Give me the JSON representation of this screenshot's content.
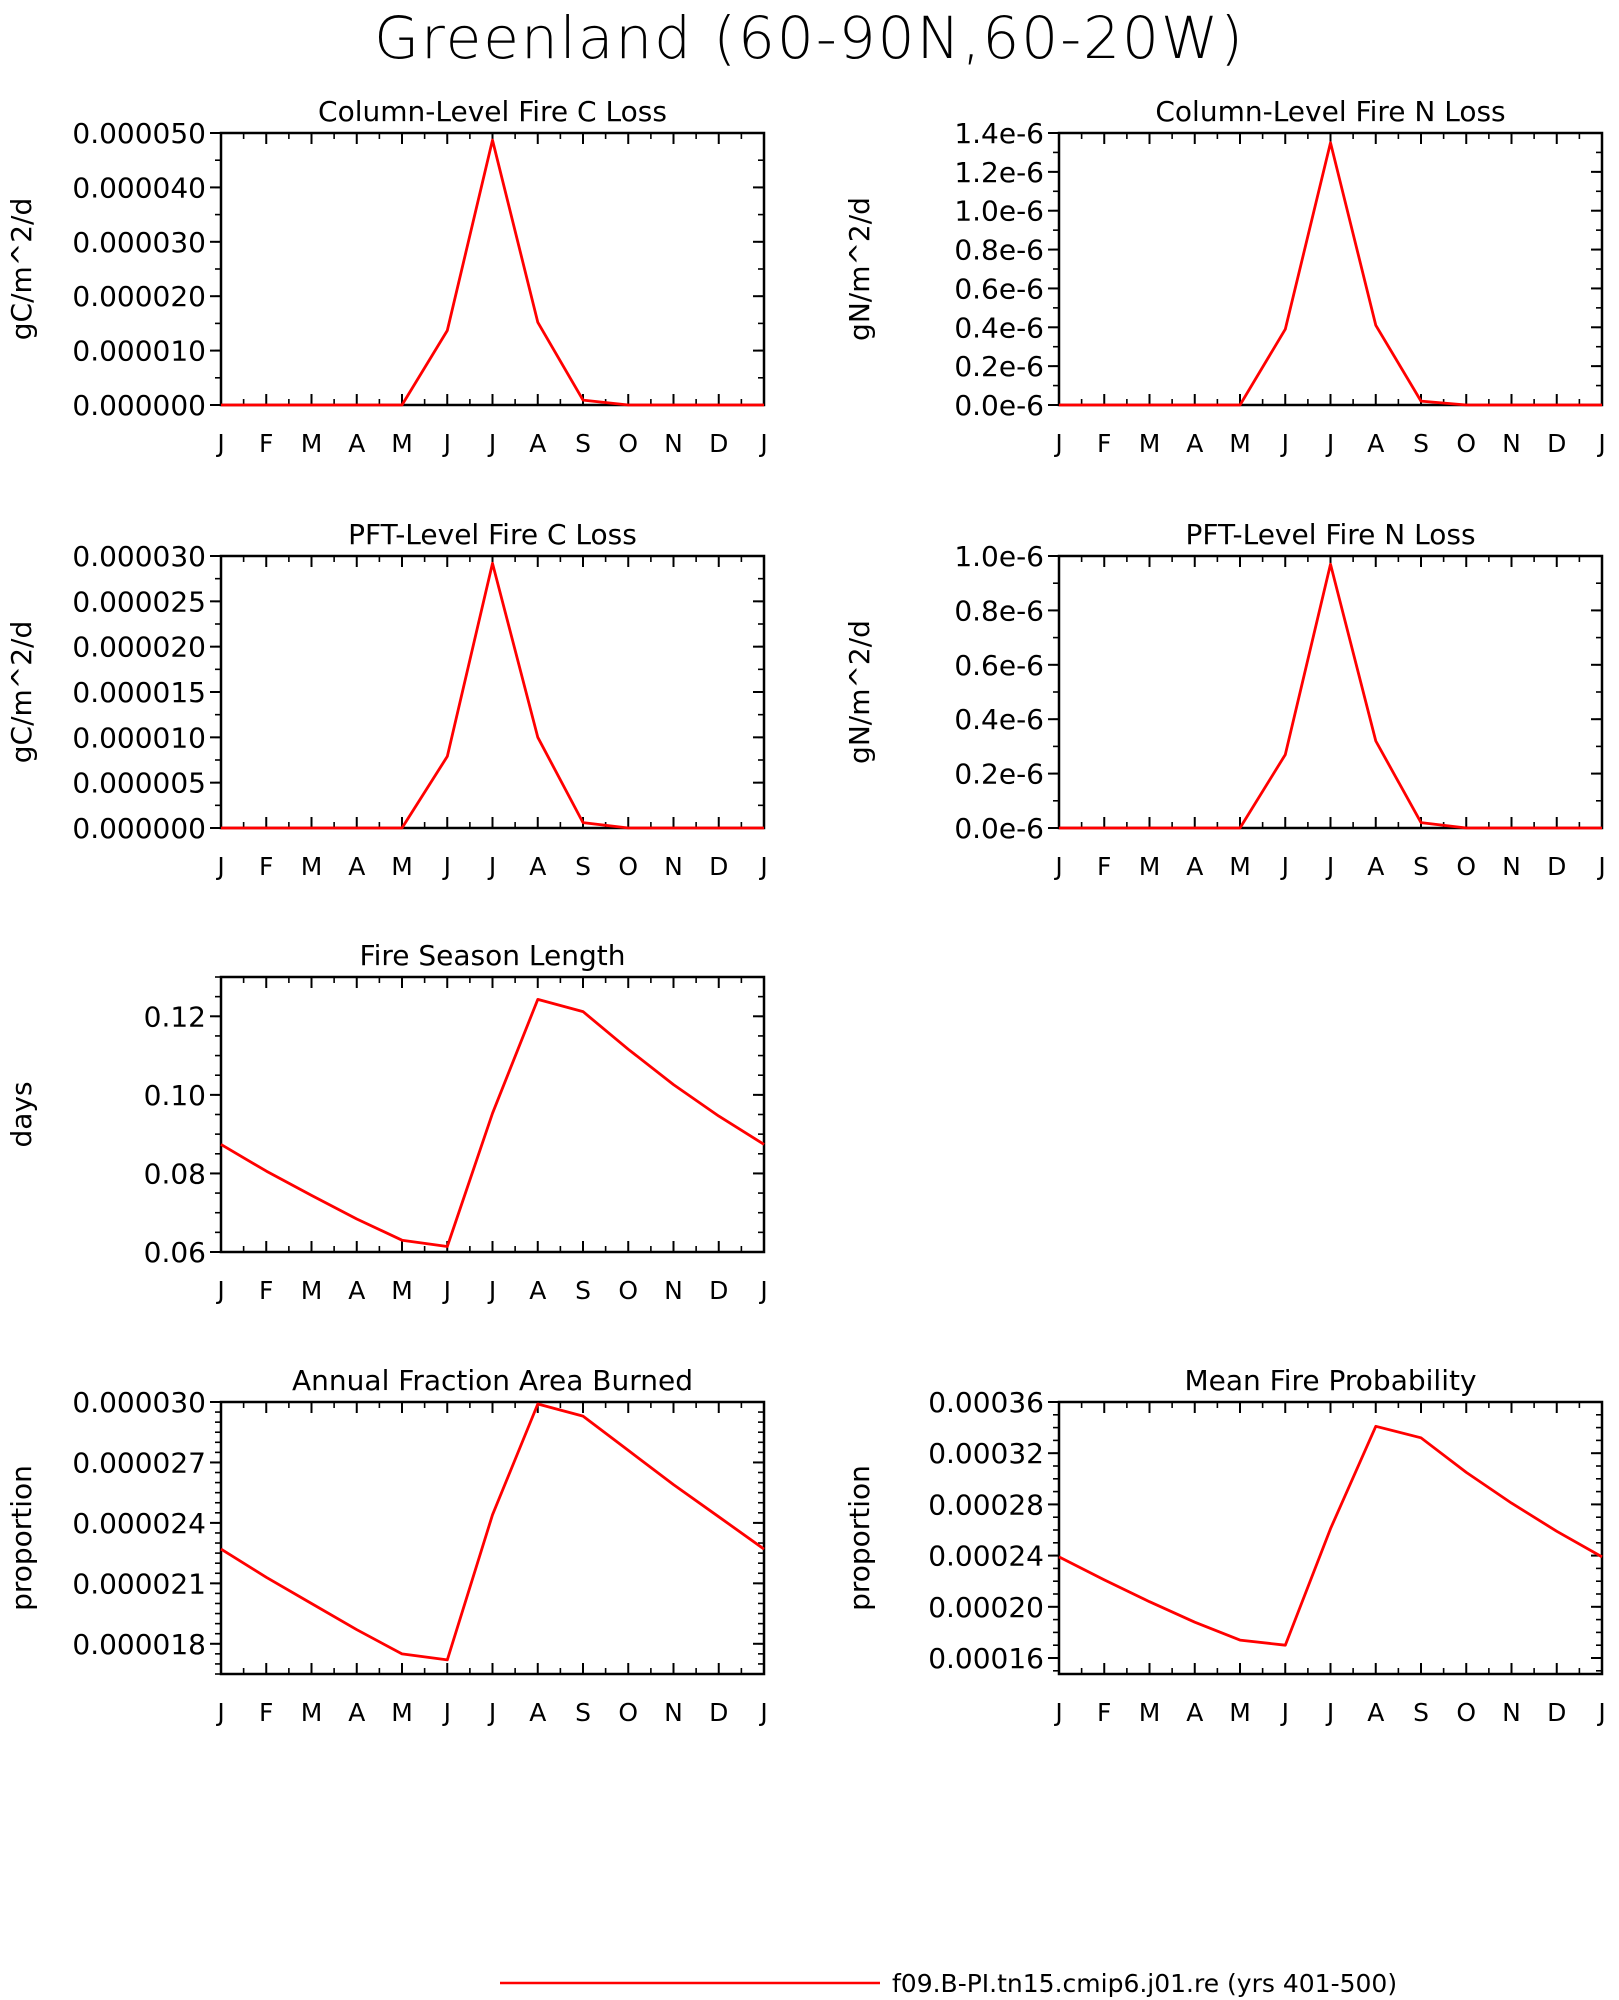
{
  "title": "Greenland (60-90N,60-20W)",
  "legend": {
    "label": "f09.B-PI.tn15.cmip6.j01.re (yrs 401-500)",
    "color": "#ff0000"
  },
  "line_color": "#ff0000",
  "months": [
    "J",
    "F",
    "M",
    "A",
    "M",
    "J",
    "J",
    "A",
    "S",
    "O",
    "N",
    "D",
    "J"
  ],
  "chart_data": [
    {
      "type": "line",
      "title": "Column-Level Fire C Loss",
      "xlabel": "",
      "ylabel": "gC/m^2/d",
      "ylim": [
        0,
        5e-05
      ],
      "yticks": [
        0,
        1e-05,
        2e-05,
        3e-05,
        4e-05,
        5e-05
      ],
      "ytick_labels": [
        "0.000000",
        "0.000010",
        "0.000020",
        "0.000030",
        "0.000040",
        "0.000050"
      ],
      "y_minor_step": 5e-06,
      "x_tick_labels": [
        "J",
        "F",
        "M",
        "A",
        "M",
        "J",
        "J",
        "A",
        "S",
        "O",
        "N",
        "D",
        "J"
      ],
      "values": [
        0,
        0,
        0,
        0,
        0,
        1.37e-05,
        4.87e-05,
        1.52e-05,
        9e-07,
        0,
        0,
        0,
        0
      ]
    },
    {
      "type": "line",
      "title": "Column-Level Fire N Loss",
      "xlabel": "",
      "ylabel": "gN/m^2/d",
      "ylim": [
        0,
        1.4e-06
      ],
      "yticks": [
        0,
        2e-07,
        4e-07,
        6e-07,
        8e-07,
        1e-06,
        1.2e-06,
        1.4e-06
      ],
      "ytick_labels": [
        "0.0e-6",
        "0.2e-6",
        "0.4e-6",
        "0.6e-6",
        "0.8e-6",
        "1.0e-6",
        "1.2e-6",
        "1.4e-6"
      ],
      "y_minor_step": 1e-07,
      "x_tick_labels": [
        "J",
        "F",
        "M",
        "A",
        "M",
        "J",
        "J",
        "A",
        "S",
        "O",
        "N",
        "D",
        "J"
      ],
      "values": [
        0,
        0,
        0,
        0,
        0,
        3.9e-07,
        1.35e-06,
        4.1e-07,
        2e-08,
        0,
        0,
        0,
        0
      ]
    },
    {
      "type": "line",
      "title": "PFT-Level Fire C Loss",
      "xlabel": "",
      "ylabel": "gC/m^2/d",
      "ylim": [
        0,
        3e-05
      ],
      "yticks": [
        0,
        5e-06,
        1e-05,
        1.5e-05,
        2e-05,
        2.5e-05,
        3e-05
      ],
      "ytick_labels": [
        "0.000000",
        "0.000005",
        "0.000010",
        "0.000015",
        "0.000020",
        "0.000025",
        "0.000030"
      ],
      "y_minor_step": 2.5e-06,
      "x_tick_labels": [
        "J",
        "F",
        "M",
        "A",
        "M",
        "J",
        "J",
        "A",
        "S",
        "O",
        "N",
        "D",
        "J"
      ],
      "values": [
        0,
        0,
        0,
        0,
        0,
        7.9e-06,
        2.92e-05,
        1e-05,
        6e-07,
        0,
        0,
        0,
        0
      ]
    },
    {
      "type": "line",
      "title": "PFT-Level Fire N Loss",
      "xlabel": "",
      "ylabel": "gN/m^2/d",
      "ylim": [
        0,
        1e-06
      ],
      "yticks": [
        0,
        2e-07,
        4e-07,
        6e-07,
        8e-07,
        1e-06
      ],
      "ytick_labels": [
        "0.0e-6",
        "0.2e-6",
        "0.4e-6",
        "0.6e-6",
        "0.8e-6",
        "1.0e-6"
      ],
      "y_minor_step": 1e-07,
      "x_tick_labels": [
        "J",
        "F",
        "M",
        "A",
        "M",
        "J",
        "J",
        "A",
        "S",
        "O",
        "N",
        "D",
        "J"
      ],
      "values": [
        0,
        0,
        0,
        0,
        0,
        2.7e-07,
        9.7e-07,
        3.2e-07,
        2e-08,
        0,
        0,
        0,
        0
      ]
    },
    {
      "type": "line",
      "title": "Fire Season Length",
      "xlabel": "",
      "ylabel": "days",
      "ylim": [
        0.06,
        0.13
      ],
      "yticks": [
        0.06,
        0.08,
        0.1,
        0.12
      ],
      "ytick_labels": [
        "0.06",
        "0.08",
        "0.10",
        "0.12"
      ],
      "y_minor_step": 0.005,
      "x_tick_labels": [
        "J",
        "F",
        "M",
        "A",
        "M",
        "J",
        "J",
        "A",
        "S",
        "O",
        "N",
        "D",
        "J"
      ],
      "values": [
        0.0874,
        0.0806,
        0.0744,
        0.0684,
        0.063,
        0.0614,
        0.0953,
        0.1243,
        0.1212,
        0.1116,
        0.1026,
        0.0946,
        0.0874
      ]
    },
    {
      "type": "line",
      "title": "Annual Fraction Area Burned",
      "xlabel": "",
      "ylabel": "proportion",
      "ylim": [
        1.65e-05,
        3e-05
      ],
      "yticks": [
        1.8e-05,
        2.1e-05,
        2.4e-05,
        2.7e-05,
        3e-05
      ],
      "ytick_labels": [
        "0.000018",
        "0.000021",
        "0.000024",
        "0.000027",
        "0.000030"
      ],
      "y_minor_step": 5e-07,
      "x_tick_labels": [
        "J",
        "F",
        "M",
        "A",
        "M",
        "J",
        "J",
        "A",
        "S",
        "O",
        "N",
        "D",
        "J"
      ],
      "values": [
        2.27e-05,
        2.13e-05,
        2e-05,
        1.87e-05,
        1.75e-05,
        1.72e-05,
        2.44e-05,
        2.99e-05,
        2.93e-05,
        2.76e-05,
        2.59e-05,
        2.43e-05,
        2.27e-05
      ]
    },
    {
      "type": "line",
      "title": "Mean Fire Probability",
      "xlabel": "",
      "ylabel": "proportion",
      "ylim": [
        0.0001475,
        0.00036
      ],
      "yticks": [
        0.00016,
        0.0002,
        0.00024,
        0.00028,
        0.00032,
        0.00036
      ],
      "ytick_labels": [
        "0.00016",
        "0.00020",
        "0.00024",
        "0.00028",
        "0.00032",
        "0.00036"
      ],
      "y_minor_step": 1e-05,
      "x_tick_labels": [
        "J",
        "F",
        "M",
        "A",
        "M",
        "J",
        "J",
        "A",
        "S",
        "O",
        "N",
        "D",
        "J"
      ],
      "values": [
        0.000239,
        0.000221,
        0.000204,
        0.000188,
        0.000174,
        0.00017,
        0.000261,
        0.000341,
        0.000332,
        0.000305,
        0.000281,
        0.000259,
        0.000239
      ]
    }
  ]
}
